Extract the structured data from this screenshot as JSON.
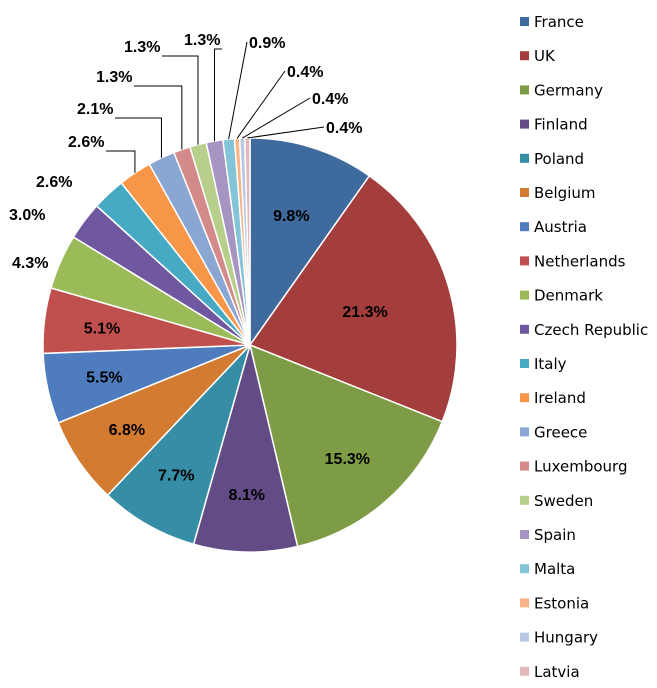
{
  "chart_data": {
    "type": "pie",
    "title": "",
    "legend_position": "right",
    "categories": [
      "France",
      "UK",
      "Germany",
      "Finland",
      "Poland",
      "Belgium",
      "Austria",
      "Netherlands",
      "Denmark",
      "Czech Republic",
      "Italy",
      "Ireland",
      "Greece",
      "Luxembourg",
      "Sweden",
      "Spain",
      "Malta",
      "Estonia",
      "Hungary",
      "Latvia"
    ],
    "values": [
      9.8,
      21.3,
      15.3,
      8.1,
      7.7,
      6.8,
      5.5,
      5.1,
      4.3,
      3.0,
      2.6,
      2.6,
      2.1,
      1.3,
      1.3,
      1.3,
      0.9,
      0.4,
      0.4,
      0.4
    ],
    "labels": [
      "9.8%",
      "21.3%",
      "15.3%",
      "8.1%",
      "7.7%",
      "6.8%",
      "5.5%",
      "5.1%",
      "4.3%",
      "3.0%",
      "2.6%",
      "2.6%",
      "2.1%",
      "1.3%",
      "1.3%",
      "1.3%",
      "0.9%",
      "0.4%",
      "0.4%",
      "0.4%"
    ],
    "colors": [
      "#3E6A9E",
      "#A43E3C",
      "#7E9C45",
      "#634C85",
      "#368EA6",
      "#D37C31",
      "#4E7CBF",
      "#C0504D",
      "#9BBB59",
      "#7058A0",
      "#46AAC5",
      "#F79646",
      "#8AA6D3",
      "#D48A89",
      "#B8CF8C",
      "#A694C2",
      "#84C4D8",
      "#F9B387",
      "#B9C8E3",
      "#E3B8B8"
    ]
  }
}
